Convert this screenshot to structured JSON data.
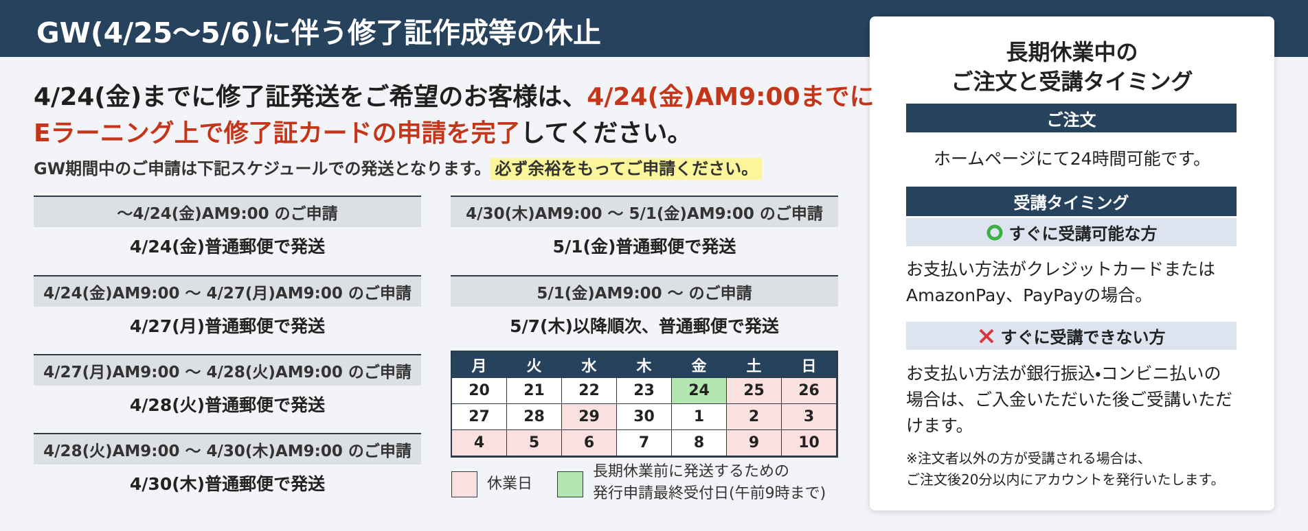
{
  "header": {
    "title": "GW(4/25〜5/6)に伴う修了証作成等の休止"
  },
  "main": {
    "headline": [
      [
        {
          "text": "4/24(金)までに修了証発送をご希望のお客様は、",
          "emphasis": false
        },
        {
          "text": "4/24(金)AM9:00までに",
          "emphasis": true
        }
      ],
      [
        {
          "text": "Eラーニング上で修了証カードの申請を完了",
          "emphasis": true
        },
        {
          "text": "してください。",
          "emphasis": false
        }
      ]
    ],
    "note": "GW期間中のご申請は下記スケジュールでの発送となります。",
    "note_highlight": "必ず余裕をもってご申請ください。"
  },
  "schedule": [
    {
      "period": "〜4/24(金)AM9:00 のご申請",
      "shipping": "4/24(金)普通郵便で発送"
    },
    {
      "period": "4/24(金)AM9:00 〜 4/27(月)AM9:00 のご申請",
      "shipping": "4/27(月)普通郵便で発送"
    },
    {
      "period": "4/27(月)AM9:00 〜 4/28(火)AM9:00 のご申請",
      "shipping": "4/28(火)普通郵便で発送"
    },
    {
      "period": "4/28(火)AM9:00 〜 4/30(木)AM9:00 のご申請",
      "shipping": "4/30(木)普通郵便で発送"
    },
    {
      "period": "4/30(木)AM9:00 〜 5/1(金)AM9:00 のご申請",
      "shipping": "5/1(金)普通郵便で発送"
    },
    {
      "period": "5/1(金)AM9:00 〜 のご申請",
      "shipping": "5/7(木)以降順次、普通郵便で発送"
    }
  ],
  "calendar": {
    "weekdays": [
      "月",
      "火",
      "水",
      "木",
      "金",
      "土",
      "日"
    ],
    "rows": [
      [
        {
          "day": 20,
          "kind": "normal"
        },
        {
          "day": 21,
          "kind": "normal"
        },
        {
          "day": 22,
          "kind": "normal"
        },
        {
          "day": 23,
          "kind": "normal"
        },
        {
          "day": 24,
          "kind": "deadline"
        },
        {
          "day": 25,
          "kind": "holiday"
        },
        {
          "day": 26,
          "kind": "holiday"
        }
      ],
      [
        {
          "day": 27,
          "kind": "normal"
        },
        {
          "day": 28,
          "kind": "normal"
        },
        {
          "day": 29,
          "kind": "holiday"
        },
        {
          "day": 30,
          "kind": "normal"
        },
        {
          "day": 1,
          "kind": "normal"
        },
        {
          "day": 2,
          "kind": "holiday"
        },
        {
          "day": 3,
          "kind": "holiday"
        }
      ],
      [
        {
          "day": 4,
          "kind": "holiday"
        },
        {
          "day": 5,
          "kind": "holiday"
        },
        {
          "day": 6,
          "kind": "holiday"
        },
        {
          "day": 7,
          "kind": "normal"
        },
        {
          "day": 8,
          "kind": "normal"
        },
        {
          "day": 9,
          "kind": "holiday"
        },
        {
          "day": 10,
          "kind": "holiday"
        }
      ]
    ],
    "legend": [
      {
        "kind": "holiday",
        "color": "#fbe0e0",
        "lines": [
          "休業日"
        ]
      },
      {
        "kind": "deadline",
        "color": "#b3e6b0",
        "lines": [
          "長期休業前に発送するための",
          "発行申請最終受付日(午前9時まで)"
        ]
      }
    ]
  },
  "panel": {
    "title": [
      "長期休業中の",
      "ご注文と受講タイミング"
    ],
    "order_heading": "ご注文",
    "order_text": "ホームページにて24時間可能です。",
    "timing_heading": "受講タイミング",
    "ok_heading": "すぐに受講可能な方",
    "ok_text": [
      "お支払い方法がクレジットカードまたは",
      "AmazonPay、PayPayの場合。"
    ],
    "ng_heading": "すぐに受講できない方",
    "ng_text": [
      "お支払い方法が銀行振込・コンビニ払いの",
      "場合は、ご入金いただいた後ご受講いただ",
      "けます。"
    ],
    "footnote": [
      "※注文者以外の方が受講される場合は、",
      "ご注文後20分以内にアカウントを発行いたします。"
    ]
  }
}
